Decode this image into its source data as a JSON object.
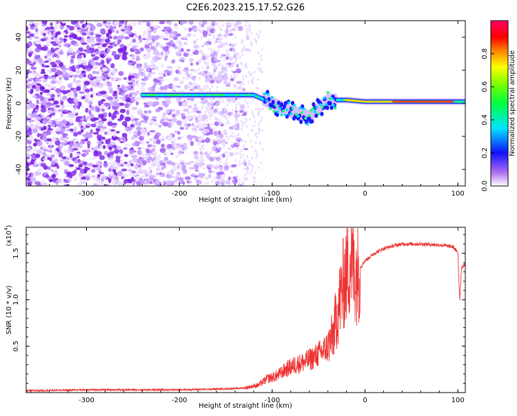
{
  "title": "C2E6.2023.215.17.52.G26",
  "chart_data": [
    {
      "type": "heatmap",
      "xlabel": "Height of straight line (km)",
      "ylabel": "Frequency (Hz)",
      "xlim": [
        -365,
        108
      ],
      "ylim": [
        -50,
        50
      ],
      "xticks": [
        -300,
        -200,
        -100,
        0,
        100
      ],
      "yticks": [
        -40,
        -20,
        0,
        20,
        40
      ],
      "colorbar": {
        "label": "Normalized spectral amplitude",
        "range": [
          0,
          1
        ],
        "ticks": [
          "0.0",
          "0.2",
          "0.4",
          "0.6",
          "0.8"
        ]
      },
      "description_trace": [
        {
          "x": -240,
          "y": 5
        },
        {
          "x": -200,
          "y": 5
        },
        {
          "x": -150,
          "y": 5
        },
        {
          "x": -120,
          "y": 5
        },
        {
          "x": -100,
          "y": 0
        },
        {
          "x": -80,
          "y": -5
        },
        {
          "x": -60,
          "y": -8
        },
        {
          "x": -40,
          "y": 2
        },
        {
          "x": -20,
          "y": 2
        },
        {
          "x": 0,
          "y": 1
        },
        {
          "x": 50,
          "y": 1
        },
        {
          "x": 105,
          "y": 1
        }
      ]
    },
    {
      "type": "line",
      "xlabel": "Height of straight line (km)",
      "ylabel": "SNR (10 * v/v)",
      "yscale_label": "(x10",
      "yscale_exp": "4",
      "yscale_close": ")",
      "xlim": [
        -365,
        108
      ],
      "ylim": [
        0,
        1.78
      ],
      "xticks": [
        -300,
        -200,
        -100,
        0,
        100
      ],
      "yticks": [
        "0.5",
        "1.0",
        "1.5"
      ],
      "color": "#ee3333",
      "series": [
        {
          "x": [
            -365,
            -300,
            -250,
            -200,
            -150,
            -130,
            -115,
            -105,
            -95,
            -85,
            -75,
            -65,
            -55,
            -45,
            -40,
            -35,
            -30,
            -25,
            -20,
            -15,
            -10,
            -5,
            0,
            10,
            20,
            30,
            40,
            60,
            80,
            95,
            100,
            102,
            104,
            108
          ],
          "y": [
            0.02,
            0.03,
            0.03,
            0.03,
            0.04,
            0.05,
            0.08,
            0.15,
            0.18,
            0.25,
            0.3,
            0.33,
            0.38,
            0.45,
            0.5,
            0.6,
            0.85,
            1.1,
            1.3,
            1.45,
            1.3,
            1.35,
            1.42,
            1.5,
            1.55,
            1.58,
            1.6,
            1.6,
            1.59,
            1.57,
            1.5,
            1.0,
            1.35,
            1.38
          ]
        }
      ]
    }
  ]
}
